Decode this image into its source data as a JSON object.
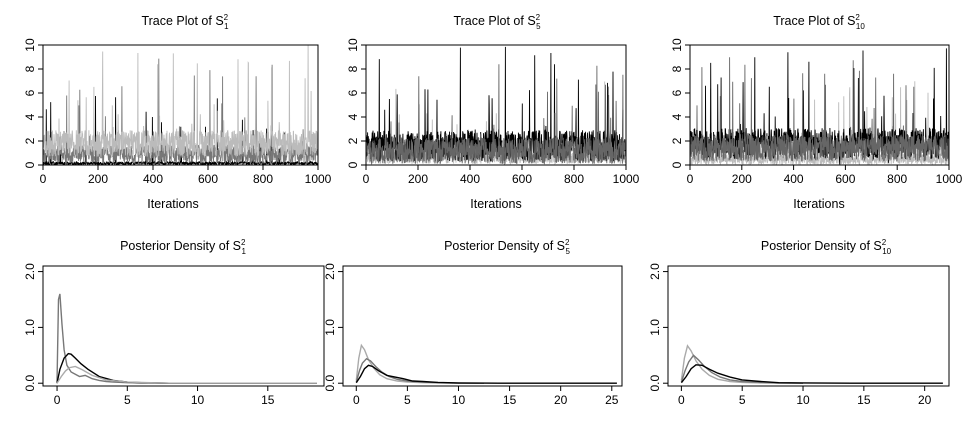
{
  "chart_data": [
    {
      "type": "line",
      "id": "trace-s1",
      "title": {
        "prefix": "Trace Plot of ",
        "var": "S",
        "sup": "2",
        "sub": "1"
      },
      "xlabel": "Iterations",
      "ylabel": "",
      "xlim": [
        0,
        1000
      ],
      "ylim": [
        0,
        10
      ],
      "x_ticks": [
        0,
        200,
        400,
        600,
        800,
        1000
      ],
      "y_ticks": [
        0,
        2,
        4,
        6,
        8,
        10
      ],
      "x_tick_labels": [
        "0",
        "200",
        "400",
        "600",
        "800",
        "1000"
      ],
      "y_tick_labels": [
        "0",
        "2",
        "4",
        "6",
        "8",
        "10"
      ],
      "grid": false,
      "series": [
        {
          "color": "#000000",
          "base": 0.15,
          "noise": 0.25,
          "spike_p": 0.025,
          "spike_max": 6.0
        },
        {
          "color": "#777777",
          "base": 0.9,
          "noise": 1.6,
          "spike_p": 0.03,
          "spike_max": 9.0
        },
        {
          "color": "#bbbbbb",
          "base": 1.8,
          "noise": 2.2,
          "spike_p": 0.035,
          "spike_max": 10.0
        }
      ]
    },
    {
      "type": "line",
      "id": "trace-s5",
      "title": {
        "prefix": "Trace Plot of ",
        "var": "S",
        "sup": "2",
        "sub": "5"
      },
      "xlabel": "Iterations",
      "ylabel": "",
      "xlim": [
        0,
        1000
      ],
      "ylim": [
        0,
        10
      ],
      "x_ticks": [
        0,
        200,
        400,
        600,
        800,
        1000
      ],
      "y_ticks": [
        0,
        2,
        4,
        6,
        8,
        10
      ],
      "x_tick_labels": [
        "0",
        "200",
        "400",
        "600",
        "800",
        "1000"
      ],
      "y_tick_labels": [
        "0",
        "2",
        "4",
        "6",
        "8",
        "10"
      ],
      "grid": false,
      "series": [
        {
          "color": "#bbbbbb",
          "base": 0.6,
          "noise": 1.0,
          "spike_p": 0.02,
          "spike_max": 7.0
        },
        {
          "color": "#000000",
          "base": 1.6,
          "noise": 2.6,
          "spike_p": 0.045,
          "spike_max": 10.0
        },
        {
          "color": "#666666",
          "base": 1.2,
          "noise": 2.2,
          "spike_p": 0.035,
          "spike_max": 9.0
        }
      ]
    },
    {
      "type": "line",
      "id": "trace-s10",
      "title": {
        "prefix": "Trace Plot of ",
        "var": "S",
        "sup": "2",
        "sub": "10"
      },
      "xlabel": "Iterations",
      "ylabel": "",
      "xlim": [
        0,
        1000
      ],
      "ylim": [
        0,
        10
      ],
      "x_ticks": [
        0,
        200,
        400,
        600,
        800,
        1000
      ],
      "y_ticks": [
        0,
        2,
        4,
        6,
        8,
        10
      ],
      "x_tick_labels": [
        "0",
        "200",
        "400",
        "600",
        "800",
        "1000"
      ],
      "y_tick_labels": [
        "0",
        "2",
        "4",
        "6",
        "8",
        "10"
      ],
      "grid": false,
      "series": [
        {
          "color": "#bbbbbb",
          "base": 0.5,
          "noise": 0.9,
          "spike_p": 0.02,
          "spike_max": 7.0
        },
        {
          "color": "#000000",
          "base": 1.8,
          "noise": 2.6,
          "spike_p": 0.045,
          "spike_max": 10.0
        },
        {
          "color": "#666666",
          "base": 1.4,
          "noise": 2.2,
          "spike_p": 0.035,
          "spike_max": 9.0
        }
      ]
    },
    {
      "type": "line",
      "id": "density-s1",
      "title": {
        "prefix": "Posterior Density of ",
        "var": "S",
        "sup": "2",
        "sub": "1"
      },
      "xlabel": "",
      "ylabel": "",
      "xlim": [
        -1,
        19
      ],
      "ylim": [
        -0.05,
        2.1
      ],
      "x_ticks": [
        0,
        5,
        10,
        15
      ],
      "y_ticks": [
        0,
        1,
        2
      ],
      "x_tick_labels": [
        "0",
        "5",
        "10",
        "15"
      ],
      "y_tick_labels": [
        "0.0",
        "1.0",
        "2.0"
      ],
      "grid": false,
      "series": [
        {
          "color": "#777777",
          "x": [
            0,
            0.1,
            0.2,
            0.35,
            0.5,
            0.7,
            1.0,
            1.3,
            1.6,
            2.0,
            2.5,
            3.0,
            3.5,
            4.0,
            5.0,
            6.0,
            8.0,
            12.0,
            18.5
          ],
          "y": [
            0.0,
            1.5,
            1.6,
            1.05,
            0.6,
            0.32,
            0.2,
            0.16,
            0.12,
            0.14,
            0.08,
            0.05,
            0.03,
            0.02,
            0.01,
            0.005,
            0.0,
            0.0,
            0.0
          ]
        },
        {
          "color": "#000000",
          "x": [
            0,
            0.2,
            0.5,
            0.8,
            1.0,
            1.3,
            1.7,
            2.2,
            3.0,
            4.0,
            5.0,
            6.0,
            8.0,
            12.0,
            18.5
          ],
          "y": [
            0.0,
            0.25,
            0.45,
            0.53,
            0.52,
            0.45,
            0.35,
            0.25,
            0.12,
            0.05,
            0.02,
            0.01,
            0.0,
            0.0,
            0.0
          ]
        },
        {
          "color": "#aaaaaa",
          "x": [
            0,
            0.3,
            0.6,
            0.9,
            1.3,
            1.8,
            2.5,
            3.5,
            5.0,
            8.0,
            18.5
          ],
          "y": [
            0.0,
            0.12,
            0.22,
            0.28,
            0.3,
            0.24,
            0.14,
            0.06,
            0.02,
            0.0,
            0.0
          ]
        }
      ]
    },
    {
      "type": "line",
      "id": "density-s5",
      "title": {
        "prefix": "Posterior Density of ",
        "var": "S",
        "sup": "2",
        "sub": "5"
      },
      "xlabel": "",
      "ylabel": "",
      "xlim": [
        -1.3,
        26
      ],
      "ylim": [
        -0.05,
        2.1
      ],
      "x_ticks": [
        0,
        5,
        10,
        15,
        20,
        25
      ],
      "y_ticks": [
        0,
        1,
        2
      ],
      "x_tick_labels": [
        "0",
        "5",
        "10",
        "15",
        "20",
        "25"
      ],
      "y_tick_labels": [
        "0.0",
        "1.0",
        "2.0"
      ],
      "grid": false,
      "series": [
        {
          "color": "#aaaaaa",
          "x": [
            0,
            0.25,
            0.5,
            0.8,
            1.2,
            1.7,
            2.3,
            3.0,
            4.0,
            5.0,
            6.5,
            8.0,
            10.0,
            12.0
          ],
          "y": [
            0.05,
            0.45,
            0.68,
            0.6,
            0.42,
            0.27,
            0.15,
            0.08,
            0.04,
            0.02,
            0.01,
            0.005,
            0.0,
            0.0
          ]
        },
        {
          "color": "#777777",
          "x": [
            0,
            0.3,
            0.6,
            1.0,
            1.4,
            1.9,
            2.5,
            3.2,
            4.0,
            5.0,
            6.5,
            8.0,
            10.0,
            12.5
          ],
          "y": [
            0.02,
            0.22,
            0.36,
            0.44,
            0.4,
            0.3,
            0.2,
            0.12,
            0.07,
            0.04,
            0.02,
            0.01,
            0.0,
            0.0
          ]
        },
        {
          "color": "#000000",
          "x": [
            0,
            0.4,
            0.8,
            1.2,
            1.6,
            2.2,
            3.0,
            3.8,
            4.6,
            5.5,
            6.5,
            8.0,
            10.0,
            14.0,
            18.0,
            22.0,
            25.5
          ],
          "y": [
            0.01,
            0.12,
            0.26,
            0.32,
            0.3,
            0.22,
            0.14,
            0.11,
            0.08,
            0.04,
            0.03,
            0.015,
            0.005,
            0.0,
            0.0,
            0.0,
            0.0
          ]
        }
      ]
    },
    {
      "type": "line",
      "id": "density-s10",
      "title": {
        "prefix": "Posterior Density of ",
        "var": "S",
        "sup": "2",
        "sub": "10"
      },
      "xlabel": "",
      "ylabel": "",
      "xlim": [
        -1.1,
        22
      ],
      "ylim": [
        -0.05,
        2.1
      ],
      "x_ticks": [
        0,
        5,
        10,
        15,
        20
      ],
      "y_ticks": [
        0,
        1,
        2
      ],
      "x_tick_labels": [
        "0",
        "5",
        "10",
        "15",
        "20"
      ],
      "y_tick_labels": [
        "0.0",
        "1.0",
        "2.0"
      ],
      "grid": false,
      "series": [
        {
          "color": "#aaaaaa",
          "x": [
            0,
            0.25,
            0.5,
            0.8,
            1.2,
            1.7,
            2.3,
            3.0,
            4.0,
            5.0,
            6.5,
            8.0,
            10.0
          ],
          "y": [
            0.05,
            0.45,
            0.67,
            0.58,
            0.4,
            0.25,
            0.14,
            0.07,
            0.03,
            0.015,
            0.005,
            0.0,
            0.0
          ]
        },
        {
          "color": "#777777",
          "x": [
            0,
            0.3,
            0.6,
            1.0,
            1.4,
            1.9,
            2.5,
            3.2,
            4.0,
            5.0,
            6.5,
            8.0,
            10.0
          ],
          "y": [
            0.02,
            0.22,
            0.38,
            0.5,
            0.42,
            0.3,
            0.19,
            0.11,
            0.06,
            0.03,
            0.015,
            0.005,
            0.0
          ]
        },
        {
          "color": "#000000",
          "x": [
            0,
            0.4,
            0.8,
            1.2,
            1.7,
            2.3,
            3.0,
            4.0,
            5.0,
            6.5,
            8.0,
            10.0,
            14.0,
            18.0,
            21.5
          ],
          "y": [
            0.01,
            0.12,
            0.26,
            0.33,
            0.32,
            0.25,
            0.18,
            0.11,
            0.06,
            0.03,
            0.01,
            0.005,
            0.0,
            0.0,
            0.0
          ]
        }
      ]
    }
  ]
}
